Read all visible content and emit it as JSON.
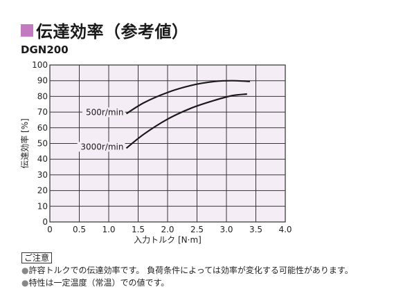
{
  "header": {
    "title": "伝達効率（参考値）",
    "model": "DGN200",
    "mark_color": "#c27bc0"
  },
  "chart_data": {
    "type": "line",
    "xlabel": "入力トルク [N·m]",
    "ylabel": "伝達効率 [%]",
    "xlim": [
      0,
      4.0
    ],
    "ylim": [
      0,
      100
    ],
    "x_ticks": [
      "0",
      "0.5",
      "1.0",
      "1.5",
      "2.0",
      "2.5",
      "3.0",
      "3.5",
      "4.0"
    ],
    "y_ticks": [
      "0",
      "10",
      "20",
      "30",
      "40",
      "50",
      "60",
      "70",
      "80",
      "90",
      "100"
    ],
    "grid": true,
    "plot_background": "#f5edf5",
    "series": [
      {
        "name": "500r/min",
        "x": [
          1.3,
          1.6,
          2.0,
          2.4,
          2.8,
          3.1,
          3.4
        ],
        "y": [
          69,
          76,
          82.5,
          87,
          89.5,
          90,
          89.5
        ]
      },
      {
        "name": "3000r/min",
        "x": [
          1.3,
          1.6,
          2.0,
          2.4,
          2.8,
          3.1,
          3.35
        ],
        "y": [
          47,
          56,
          65.5,
          72.5,
          77.5,
          80.5,
          81.5
        ]
      }
    ]
  },
  "notes": {
    "label": "ご注意",
    "items": [
      "許容トルクでの伝達効率です。 負荷条件によっては効率が変化する可能性があります。",
      "特性は一定温度（常温）での値です。"
    ]
  }
}
